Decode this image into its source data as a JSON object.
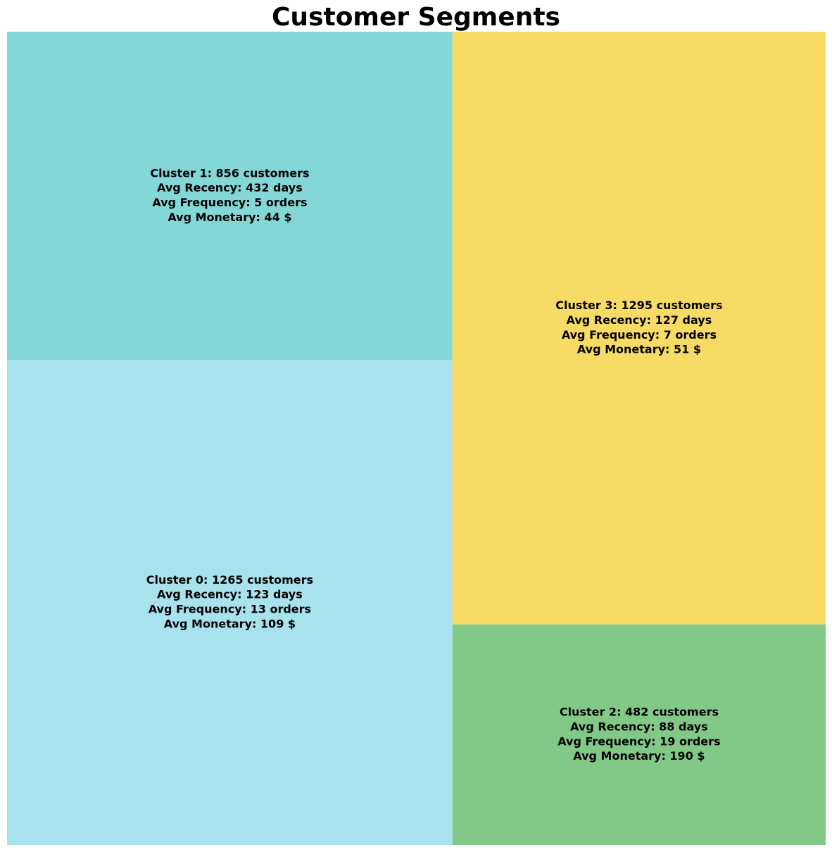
{
  "chart_data": {
    "type": "treemap",
    "title": "Customer Segments",
    "clusters": [
      {
        "name": "Cluster 0",
        "customers": 1265,
        "color": "#a8e2ec",
        "lines": [
          "Cluster 0: 1265 customers",
          "Avg Recency: 123 days",
          "Avg Frequency: 13 orders",
          "Avg Monetary: 109 $"
        ]
      },
      {
        "name": "Cluster 1",
        "customers": 856,
        "color": "#84d7d7",
        "lines": [
          "Cluster 1: 856 customers",
          "Avg Recency: 432 days",
          "Avg Frequency: 5 orders",
          "Avg Monetary: 44 $"
        ]
      },
      {
        "name": "Cluster 2",
        "customers": 482,
        "color": "#82c988",
        "lines": [
          "Cluster 2: 482 customers",
          "Avg Recency: 88 days",
          "Avg Frequency: 19 orders",
          "Avg Monetary: 190 $"
        ]
      },
      {
        "name": "Cluster 3",
        "customers": 1295,
        "color": "#f8db65",
        "lines": [
          "Cluster 3: 1295 customers",
          "Avg Recency: 127 days",
          "Avg Frequency: 7 orders",
          "Avg Monetary: 51 $"
        ]
      }
    ]
  }
}
